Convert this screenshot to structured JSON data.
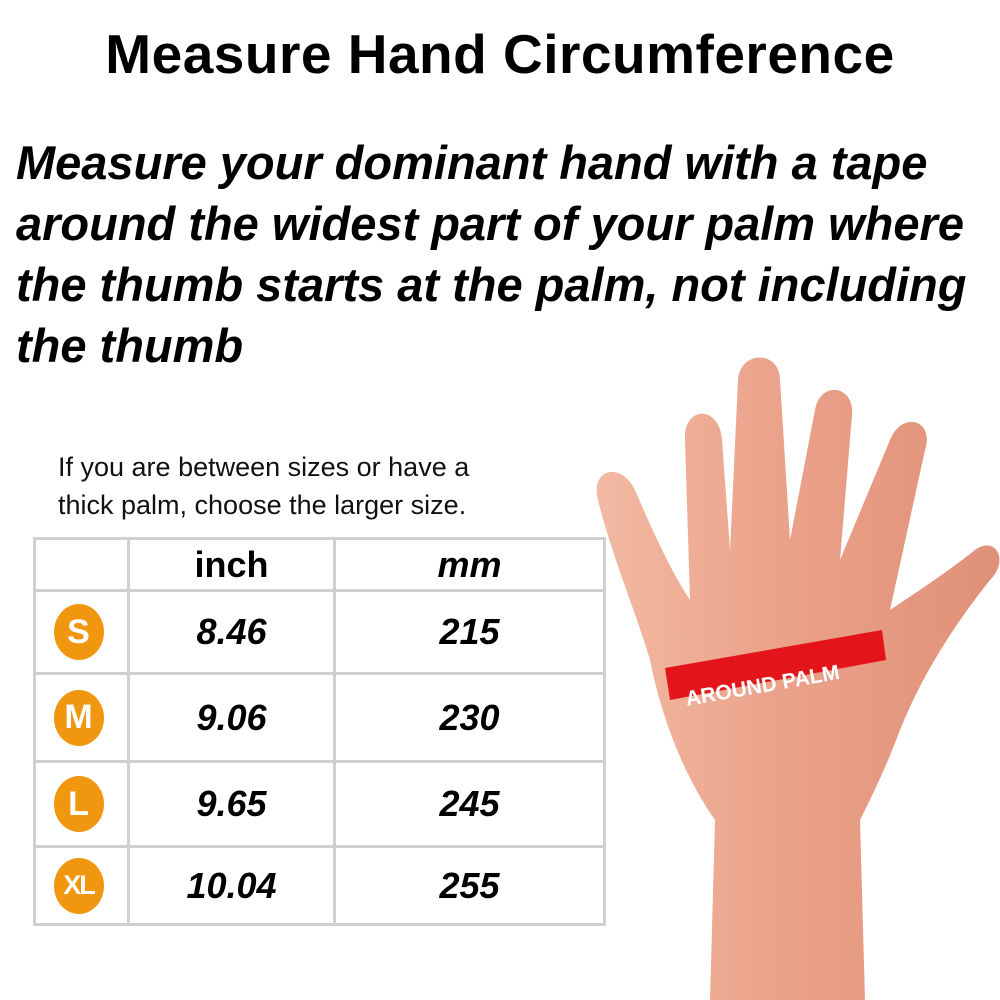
{
  "title": "Measure Hand Circumference",
  "instructions": "Measure your dominant hand with a tape around the widest part of your palm where the thumb starts at the palm, not including the thumb",
  "note_line1": "If you are between sizes or have a",
  "note_line2": "thick palm, choose the larger size.",
  "tape_label": "AROUND PALM",
  "colors": {
    "badge": "#f0960f",
    "tape": "#e3151a",
    "skin": "#eaa088"
  },
  "table": {
    "headers": [
      "",
      "inch",
      "mm"
    ],
    "rows": [
      {
        "size": "S",
        "inch": "8.46",
        "mm": "215"
      },
      {
        "size": "M",
        "inch": "9.06",
        "mm": "230"
      },
      {
        "size": "L",
        "inch": "9.65",
        "mm": "245"
      },
      {
        "size": "XL",
        "inch": "10.04",
        "mm": "255"
      }
    ]
  }
}
